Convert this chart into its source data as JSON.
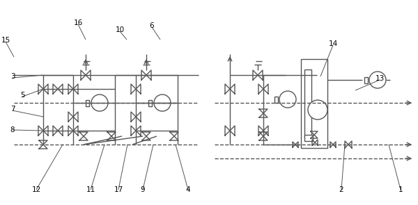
{
  "bg_color": "#ffffff",
  "line_color": "#555555",
  "text_color": "#000000",
  "fig_width": 6.0,
  "fig_height": 2.95,
  "dpi": 100
}
